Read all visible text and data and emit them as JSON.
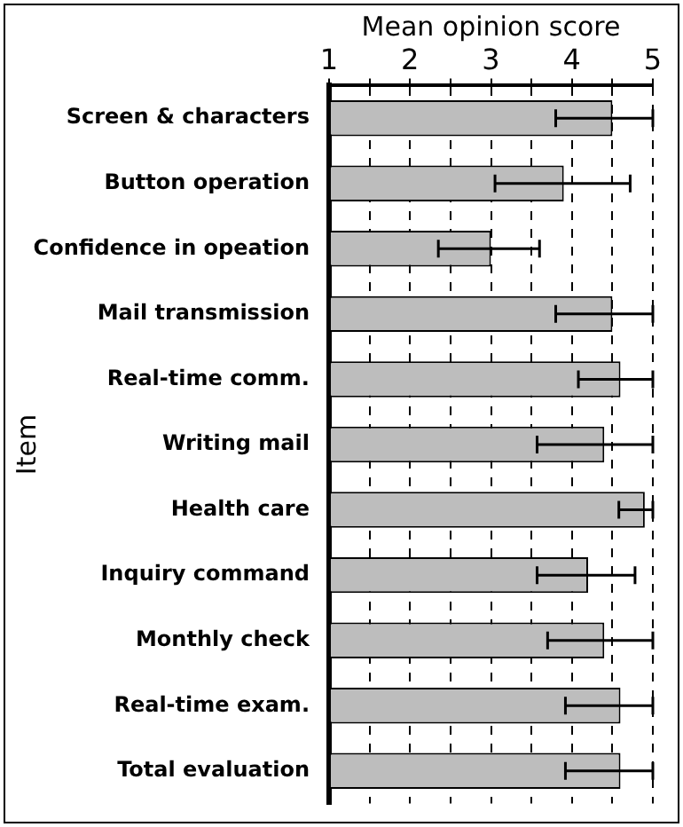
{
  "chart_data": {
    "type": "bar",
    "orientation": "horizontal",
    "xlabel": "Mean opinion score",
    "ylabel": "Item",
    "categories": [
      "Screen & characters",
      "Button operation",
      "Confidence in opeation",
      "Mail transmission",
      "Real-time comm.",
      "Writing mail",
      "Health care",
      "Inquiry command",
      "Monthly check",
      "Real-time exam.",
      "Total evaluation"
    ],
    "values": [
      4.5,
      3.9,
      3.0,
      4.5,
      4.6,
      4.4,
      4.9,
      4.2,
      4.4,
      4.6,
      4.6
    ],
    "errors": [
      [
        3.8,
        5.0
      ],
      [
        3.05,
        4.72
      ],
      [
        2.35,
        3.6
      ],
      [
        3.8,
        5.0
      ],
      [
        4.08,
        5.0
      ],
      [
        3.57,
        5.0
      ],
      [
        4.58,
        5.0
      ],
      [
        3.57,
        4.78
      ],
      [
        3.7,
        5.0
      ],
      [
        3.92,
        5.0
      ],
      [
        3.92,
        5.0
      ]
    ],
    "color": "#bdbdbd",
    "xlim": [
      1,
      5
    ],
    "xticks": [
      1,
      {
        "value": 1.5,
        "label": null
      },
      2,
      {
        "value": 2.5,
        "label": null
      },
      3,
      {
        "value": 3.5,
        "label": null
      },
      4,
      {
        "value": 4.5,
        "label": null
      },
      5
    ],
    "grid": "x"
  }
}
